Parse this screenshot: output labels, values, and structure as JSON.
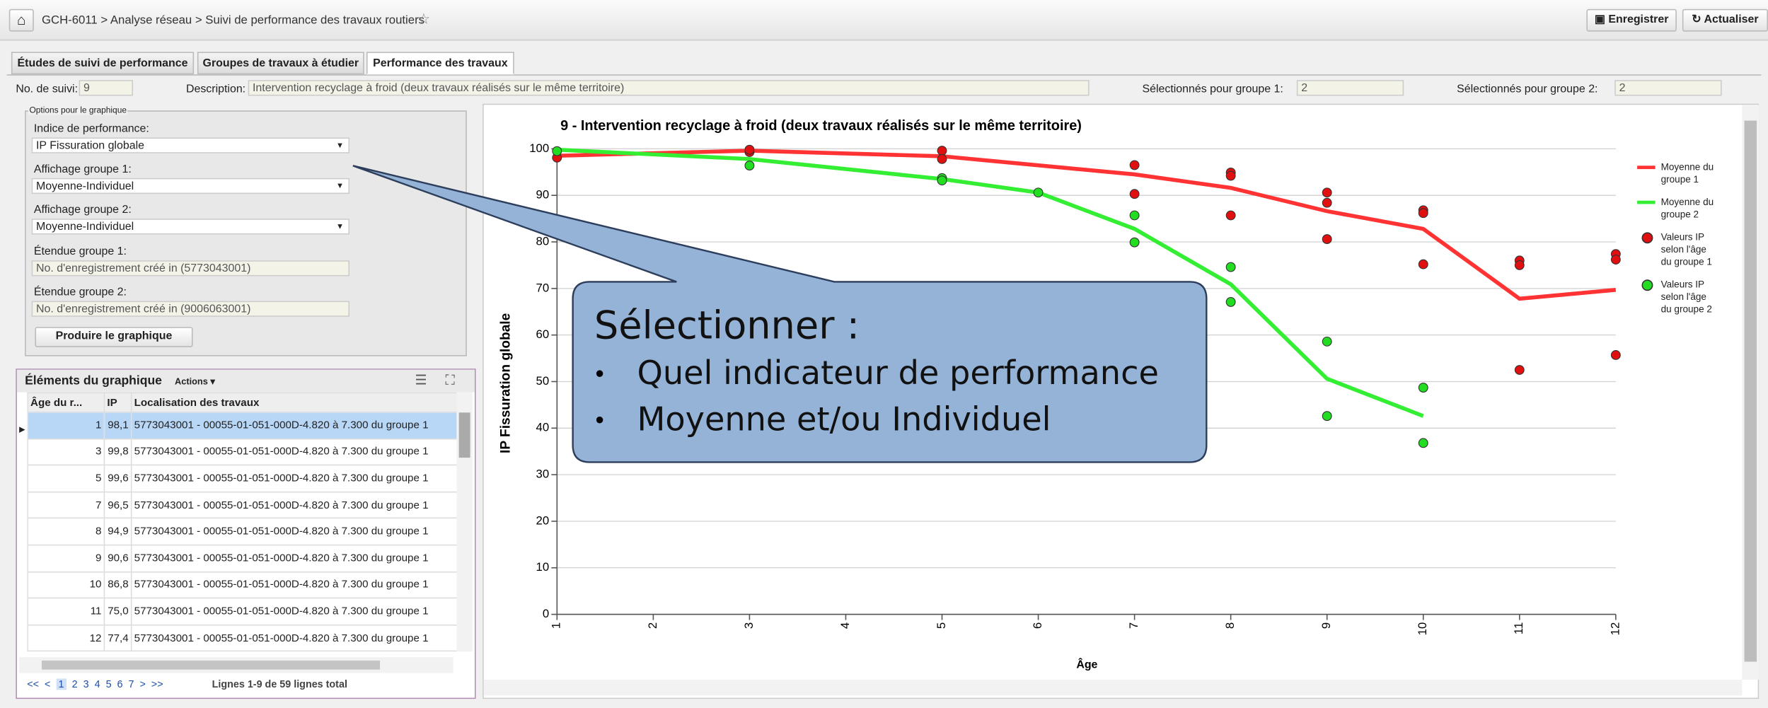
{
  "header": {
    "breadcrumb": "GCH-6011 > Analyse réseau > Suivi de performance des travaux routiers",
    "buttons": [
      "Enregistrer",
      "Actualiser"
    ]
  },
  "tabs": [
    "Études de suivi de performance",
    "Groupes de travaux à étudier",
    "Performance des travaux"
  ],
  "info": {
    "suivi_label": "No. de suivi:",
    "suivi": "9",
    "description_label": "Description:",
    "description": "Intervention recyclage à froid (deux travaux réalisés sur le même territoire)",
    "groupe1_label": "Sélectionnés pour groupe 1:",
    "groupe1": "2",
    "groupe2_label": "Sélectionnés pour groupe 2:",
    "groupe2": "2"
  },
  "options": {
    "legend": "Options pour le graphique",
    "indice_label": "Indice de performance:",
    "indice": "IP Fissuration globale",
    "affichage1_label": "Affichage groupe 1:",
    "affichage1": "Moyenne-Individuel",
    "affichage2_label": "Affichage groupe 2:",
    "affichage2": "Moyenne-Individuel",
    "etendue1_label": "Étendue groupe 1:",
    "etendue1": "No. d'enregistrement créé in (5773043001)",
    "etendue2_label": "Étendue groupe 2:",
    "etendue2": "No. d'enregistrement créé in (9006063001)",
    "button": "Produire le graphique"
  },
  "table": {
    "title": "Éléments du graphique",
    "actions": "Actions ▾",
    "columns": [
      "Âge du r...",
      "IP",
      "Localisation des travaux"
    ],
    "rows": [
      [
        "1",
        "98,1",
        "5773043001 - 00055-01-051-000D-4.820 à  7.300 du groupe 1"
      ],
      [
        "3",
        "99,8",
        "5773043001 - 00055-01-051-000D-4.820 à  7.300 du groupe 1"
      ],
      [
        "5",
        "99,6",
        "5773043001 - 00055-01-051-000D-4.820 à  7.300 du groupe 1"
      ],
      [
        "7",
        "96,5",
        "5773043001 - 00055-01-051-000D-4.820 à  7.300 du groupe 1"
      ],
      [
        "8",
        "94,9",
        "5773043001 - 00055-01-051-000D-4.820 à  7.300 du groupe 1"
      ],
      [
        "9",
        "90,6",
        "5773043001 - 00055-01-051-000D-4.820 à  7.300 du groupe 1"
      ],
      [
        "10",
        "86,8",
        "5773043001 - 00055-01-051-000D-4.820 à  7.300 du groupe 1"
      ],
      [
        "11",
        "75,0",
        "5773043001 - 00055-01-051-000D-4.820 à  7.300 du groupe 1"
      ],
      [
        "12",
        "77,4",
        "5773043001 - 00055-01-051-000D-4.820 à  7.300 du groupe 1"
      ]
    ],
    "pagination": {
      "links": [
        "<<",
        "<",
        "1",
        "2",
        "3",
        "4",
        "5",
        "6",
        "7",
        ">",
        ">>"
      ],
      "summary": "Lignes 1-9 de 59 lignes total"
    }
  },
  "chart_data": {
    "type": "line",
    "title": "9 - Intervention recyclage à froid (deux travaux réalisés sur le même territoire)",
    "x_label": "Âge",
    "y_label": "IP Fissuration globale",
    "xlim": [
      1,
      12
    ],
    "xticks": [
      1,
      2,
      3,
      4,
      5,
      6,
      7,
      8,
      9,
      10,
      11,
      12
    ],
    "ylim": [
      0,
      100
    ],
    "yticks": [
      0,
      10,
      20,
      30,
      40,
      50,
      60,
      70,
      80,
      90,
      100
    ],
    "grid": true,
    "legend": "right",
    "series": [
      {
        "name": "Moyenne du groupe 1",
        "type": "line",
        "color": "#ff3333",
        "x": [
          1,
          3,
          5,
          7,
          8,
          9,
          10,
          11,
          12
        ],
        "values": [
          98.5,
          99.6,
          98.4,
          94.5,
          91.6,
          86.6,
          82.8,
          67.8,
          69.7
        ]
      },
      {
        "name": "Moyenne du groupe 2",
        "type": "line",
        "color": "#33ee33",
        "x": [
          1,
          3,
          5,
          6,
          7,
          8,
          9,
          10
        ],
        "values": [
          99.8,
          97.8,
          93.5,
          90.6,
          82.8,
          70.9,
          50.6,
          42.6
        ]
      },
      {
        "name": "Valeurs IP selon l'âge du groupe 1",
        "type": "scatter",
        "color": "#e01010",
        "x": [
          1,
          3,
          3,
          5,
          5,
          7,
          7,
          8,
          8,
          8,
          9,
          9,
          9,
          10,
          10,
          10,
          11,
          11,
          11,
          12,
          12,
          12
        ],
        "values": [
          98.1,
          99.3,
          99.8,
          99.6,
          97.8,
          96.5,
          90.3,
          94.9,
          94.2,
          85.7,
          90.6,
          88.4,
          80.6,
          86.8,
          86.2,
          75.2,
          76.0,
          75.0,
          52.5,
          77.4,
          76.2,
          55.7
        ]
      },
      {
        "name": "Valeurs IP selon l'âge du groupe 2",
        "type": "scatter",
        "color": "#22dd22",
        "x": [
          1,
          3,
          5,
          5,
          6,
          7,
          7,
          8,
          8,
          9,
          9,
          10,
          10
        ],
        "values": [
          99.5,
          96.4,
          93.7,
          93.2,
          90.6,
          85.7,
          79.9,
          74.6,
          67.1,
          58.6,
          42.6,
          48.7,
          36.8
        ]
      }
    ]
  },
  "callout": {
    "title": "Sélectionner :",
    "items": [
      "Quel indicateur de performance",
      "Moyenne et/ou Individuel"
    ]
  }
}
